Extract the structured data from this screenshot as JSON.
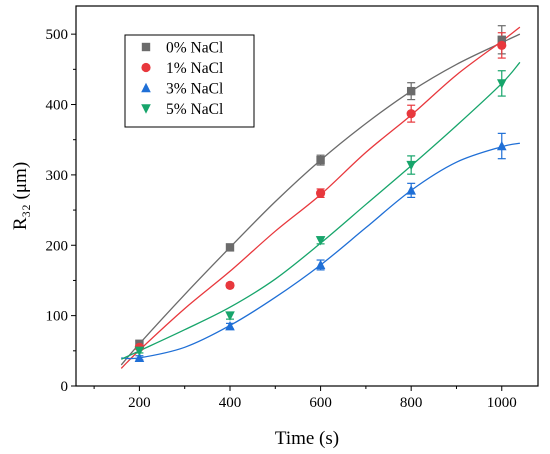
{
  "chart_data": {
    "type": "scatter",
    "xlabel": "Time (s)",
    "ylabel": "R₃₂ (μm)",
    "xlim": [
      60,
      1080
    ],
    "ylim": [
      0,
      540
    ],
    "xticks": [
      200,
      400,
      600,
      800,
      1000
    ],
    "yticks": [
      0,
      100,
      200,
      300,
      400,
      500
    ],
    "legend_position": "top-left",
    "series": [
      {
        "name": "0% NaCl",
        "color": "#6b6b6b",
        "marker": "square",
        "points": [
          {
            "x": 200,
            "y": 60,
            "err": 4
          },
          {
            "x": 400,
            "y": 197,
            "err": 3
          },
          {
            "x": 600,
            "y": 321,
            "err": 7
          },
          {
            "x": 800,
            "y": 419,
            "err": 12
          },
          {
            "x": 1000,
            "y": 492,
            "err": 20
          }
        ],
        "fit": [
          [
            160,
            30
          ],
          [
            200,
            60
          ],
          [
            300,
            130
          ],
          [
            400,
            197
          ],
          [
            500,
            262
          ],
          [
            600,
            321
          ],
          [
            700,
            373
          ],
          [
            800,
            419
          ],
          [
            900,
            457
          ],
          [
            1000,
            488
          ],
          [
            1040,
            500
          ]
        ]
      },
      {
        "name": "1% NaCl",
        "color": "#e8383d",
        "marker": "circle",
        "points": [
          {
            "x": 200,
            "y": 55,
            "err": 3
          },
          {
            "x": 400,
            "y": 143,
            "err": 3
          },
          {
            "x": 600,
            "y": 274,
            "err": 6
          },
          {
            "x": 800,
            "y": 387,
            "err": 12
          },
          {
            "x": 1000,
            "y": 484,
            "err": 18
          }
        ],
        "fit": [
          [
            160,
            25
          ],
          [
            200,
            51
          ],
          [
            300,
            110
          ],
          [
            400,
            163
          ],
          [
            500,
            220
          ],
          [
            600,
            272
          ],
          [
            700,
            332
          ],
          [
            800,
            385
          ],
          [
            900,
            442
          ],
          [
            1000,
            490
          ],
          [
            1040,
            510
          ]
        ]
      },
      {
        "name": "3% NaCl",
        "color": "#1f6fd6",
        "marker": "triangle-up",
        "points": [
          {
            "x": 200,
            "y": 40,
            "err": 3
          },
          {
            "x": 400,
            "y": 85,
            "err": 4
          },
          {
            "x": 600,
            "y": 172,
            "err": 7
          },
          {
            "x": 800,
            "y": 278,
            "err": 10
          },
          {
            "x": 1000,
            "y": 341,
            "err": 18
          }
        ],
        "fit": [
          [
            160,
            40
          ],
          [
            200,
            40
          ],
          [
            300,
            55
          ],
          [
            400,
            86
          ],
          [
            500,
            126
          ],
          [
            600,
            172
          ],
          [
            700,
            225
          ],
          [
            800,
            278
          ],
          [
            900,
            318
          ],
          [
            1000,
            340
          ],
          [
            1040,
            345
          ]
        ]
      },
      {
        "name": "5% NaCl",
        "color": "#17a56b",
        "marker": "triangle-down",
        "points": [
          {
            "x": 200,
            "y": 50,
            "err": 3
          },
          {
            "x": 400,
            "y": 100,
            "err": 5
          },
          {
            "x": 600,
            "y": 207,
            "err": 5
          },
          {
            "x": 800,
            "y": 314,
            "err": 13
          },
          {
            "x": 1000,
            "y": 430,
            "err": 18
          }
        ],
        "fit": [
          [
            160,
            38
          ],
          [
            200,
            50
          ],
          [
            300,
            80
          ],
          [
            400,
            112
          ],
          [
            500,
            152
          ],
          [
            600,
            203
          ],
          [
            700,
            258
          ],
          [
            800,
            313
          ],
          [
            900,
            370
          ],
          [
            1000,
            430
          ],
          [
            1040,
            460
          ]
        ]
      }
    ]
  }
}
